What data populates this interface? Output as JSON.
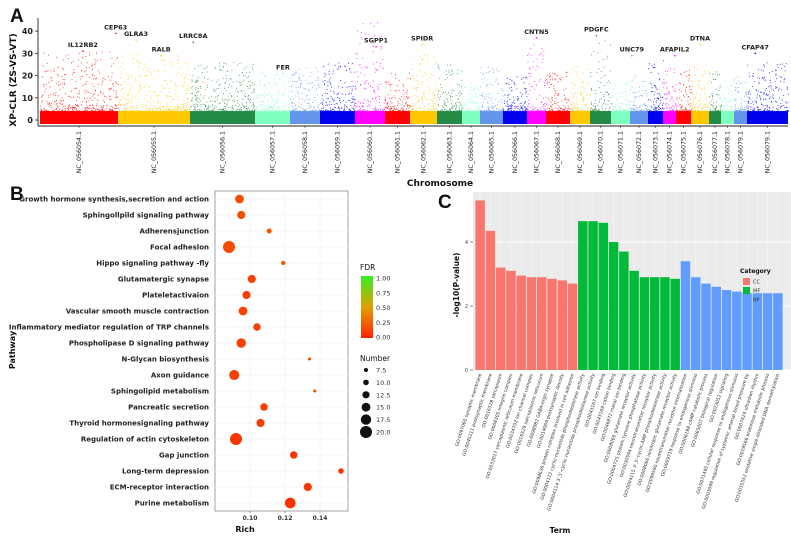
{
  "chart_data": [
    {
      "panel": "A",
      "type": "scatter",
      "subtype": "manhattan",
      "title": "",
      "xlabel": "Chromosome",
      "ylabel": "XP-CLR (ZS-VS-VT)",
      "ylim": [
        0,
        45
      ],
      "yticks": [
        0,
        10,
        20,
        30,
        40
      ],
      "grid": false,
      "chromosomes": [
        {
          "name": "NC_056054.1",
          "color": "#ff0000",
          "max": 31,
          "span": 78
        },
        {
          "name": "NC_056055.1",
          "color": "#ffc800",
          "max": 30,
          "span": 72
        },
        {
          "name": "NC_056056.1",
          "color": "#238b45",
          "max": 26,
          "span": 65
        },
        {
          "name": "NC_056057.1",
          "color": "#7fffbf",
          "max": 22,
          "span": 35
        },
        {
          "name": "NC_056058.1",
          "color": "#6495ed",
          "max": 24,
          "span": 30
        },
        {
          "name": "NC_056059.1",
          "color": "#0000ee",
          "max": 26,
          "span": 35
        },
        {
          "name": "NC_056060.1",
          "color": "#ff00ff",
          "max": 44,
          "span": 30
        },
        {
          "name": "NC_056061.1",
          "color": "#ff0000",
          "max": 22,
          "span": 25
        },
        {
          "name": "NC_056062.1",
          "color": "#ffc800",
          "max": 34,
          "span": 27
        },
        {
          "name": "NC_056063.1",
          "color": "#238b45",
          "max": 25,
          "span": 25
        },
        {
          "name": "NC_056064.1",
          "color": "#7fffbf",
          "max": 18,
          "span": 18
        },
        {
          "name": "NC_056065.1",
          "color": "#6495ed",
          "max": 24,
          "span": 23
        },
        {
          "name": "NC_056066.1",
          "color": "#0000ee",
          "max": 20,
          "span": 24
        },
        {
          "name": "NC_056067.1",
          "color": "#ff00ff",
          "max": 35,
          "span": 19
        },
        {
          "name": "NC_056068.1",
          "color": "#ff0000",
          "max": 22,
          "span": 24
        },
        {
          "name": "NC_056069.1",
          "color": "#ffc800",
          "max": 25,
          "span": 20
        },
        {
          "name": "NC_056070.1",
          "color": "#238b45",
          "max": 37,
          "span": 21
        },
        {
          "name": "NC_056071.1",
          "color": "#7fffbf",
          "max": 18,
          "span": 19
        },
        {
          "name": "NC_056072.1",
          "color": "#6495ed",
          "max": 20,
          "span": 18
        },
        {
          "name": "NC_056073.1",
          "color": "#0000ee",
          "max": 28,
          "span": 15
        },
        {
          "name": "NC_056074.1",
          "color": "#ff00ff",
          "max": 24,
          "span": 13
        },
        {
          "name": "NC_056075.1",
          "color": "#ff0000",
          "max": 23,
          "span": 15
        },
        {
          "name": "NC_056076.1",
          "color": "#ffc800",
          "max": 24,
          "span": 18
        },
        {
          "name": "NC_056077.1",
          "color": "#238b45",
          "max": 22,
          "span": 12
        },
        {
          "name": "NC_056078.1",
          "color": "#7fffbf",
          "max": 18,
          "span": 13
        },
        {
          "name": "NC_056079.1",
          "color": "#6495ed",
          "max": 20,
          "span": 13
        },
        {
          "name": "NC_056079.1",
          "color": "#0000ee",
          "max": 26,
          "span": 41
        }
      ],
      "annotations": [
        {
          "label": "IL12RB2",
          "chrom_index": 0,
          "pos": 0.55,
          "y": 31
        },
        {
          "label": "CEP63",
          "chrom_index": 0,
          "pos": 0.97,
          "y": 39
        },
        {
          "label": "GLRA3",
          "chrom_index": 1,
          "pos": 0.25,
          "y": 36
        },
        {
          "label": "RALB",
          "chrom_index": 1,
          "pos": 0.6,
          "y": 29
        },
        {
          "label": "LRRC8A",
          "chrom_index": 2,
          "pos": 0.05,
          "y": 35
        },
        {
          "label": "FER",
          "chrom_index": 3,
          "pos": 0.8,
          "y": 21
        },
        {
          "label": "SGPP1",
          "chrom_index": 6,
          "pos": 0.7,
          "y": 33
        },
        {
          "label": "SPIDR",
          "chrom_index": 8,
          "pos": 0.45,
          "y": 34
        },
        {
          "label": "CNTN5",
          "chrom_index": 13,
          "pos": 0.5,
          "y": 37
        },
        {
          "label": "PDGFC",
          "chrom_index": 16,
          "pos": 0.3,
          "y": 38
        },
        {
          "label": "UNC79",
          "chrom_index": 18,
          "pos": 0.1,
          "y": 29
        },
        {
          "label": "AFAPIL2",
          "chrom_index": 20,
          "pos": 0.9,
          "y": 29
        },
        {
          "label": "DTNA",
          "chrom_index": 22,
          "pos": 0.5,
          "y": 34
        },
        {
          "label": "CFAP47",
          "chrom_index": 26,
          "pos": 0.2,
          "y": 30
        }
      ]
    },
    {
      "panel": "B",
      "type": "scatter",
      "subtype": "bubble",
      "title": "",
      "xlabel": "Rich",
      "ylabel": "Pathway",
      "xlim": [
        0.085,
        0.155
      ],
      "xticks": [
        0.1,
        0.12,
        0.14
      ],
      "xtick_labels": [
        "0.10",
        "0.12",
        "0.14"
      ],
      "grid": true,
      "color_legend": {
        "title": "FDR",
        "ticks": [
          "1.00",
          "0.75",
          "0.50",
          "0.25",
          "0.00"
        ],
        "low_color": "#ff2200",
        "mid_color": "#e8a000",
        "high_color": "#33ee22"
      },
      "size_legend": {
        "title": "Number",
        "values": [
          "7.5",
          "10.0",
          "12.5",
          "15.0",
          "17.5",
          "20.0"
        ]
      },
      "points": [
        {
          "pathway": "Growth hormone synthesis,secretion and action",
          "rich": 0.094,
          "number": 15,
          "fdr": 0.18
        },
        {
          "pathway": "Sphingollpild signaling pathway",
          "rich": 0.095,
          "number": 14,
          "fdr": 0.18
        },
        {
          "pathway": "Adherensjunction",
          "rich": 0.111,
          "number": 9,
          "fdr": 0.2
        },
        {
          "pathway": "Focal adheslon",
          "rich": 0.088,
          "number": 20,
          "fdr": 0.16
        },
        {
          "pathway": "Hippo signaling pathway -fly",
          "rich": 0.119,
          "number": 8,
          "fdr": 0.2
        },
        {
          "pathway": "Glutamatergic synapse",
          "rich": 0.101,
          "number": 14,
          "fdr": 0.12
        },
        {
          "pathway": "Plateletactivaion",
          "rich": 0.098,
          "number": 14,
          "fdr": 0.12
        },
        {
          "pathway": "Vascular smooth muscle contraction",
          "rich": 0.096,
          "number": 15,
          "fdr": 0.12
        },
        {
          "pathway": "Inflammatory mediator regulation of TRP channels",
          "rich": 0.104,
          "number": 13,
          "fdr": 0.12
        },
        {
          "pathway": "Phospholipase D signaling pathway",
          "rich": 0.095,
          "number": 16,
          "fdr": 0.12
        },
        {
          "pathway": "N-Glycan biosynthesis",
          "rich": 0.134,
          "number": 6,
          "fdr": 0.12
        },
        {
          "pathway": "Axon guidance",
          "rich": 0.091,
          "number": 17,
          "fdr": 0.12
        },
        {
          "pathway": "Sphingolipid metabolism",
          "rich": 0.137,
          "number": 6,
          "fdr": 0.12
        },
        {
          "pathway": "Pancreatic secretion",
          "rich": 0.108,
          "number": 13,
          "fdr": 0.1
        },
        {
          "pathway": "Thyroid hormonesignaling pathway",
          "rich": 0.106,
          "number": 14,
          "fdr": 0.1
        },
        {
          "pathway": "Regulation of actin cytoskeleton",
          "rich": 0.092,
          "number": 20,
          "fdr": 0.08
        },
        {
          "pathway": "Gap junction",
          "rich": 0.125,
          "number": 13,
          "fdr": 0.08
        },
        {
          "pathway": "Long-term depression",
          "rich": 0.152,
          "number": 10,
          "fdr": 0.08
        },
        {
          "pathway": "ECM-receptor interaction",
          "rich": 0.133,
          "number": 14,
          "fdr": 0.08
        },
        {
          "pathway": "Purine metabolism",
          "rich": 0.123,
          "number": 18,
          "fdr": 0.06
        }
      ]
    },
    {
      "panel": "C",
      "type": "bar",
      "title": "",
      "xlabel": "Term",
      "ylabel": "-log10(P-value)",
      "ylim": [
        0,
        5.6
      ],
      "yticks": [
        0,
        2,
        4
      ],
      "grid": true,
      "legend": {
        "title": "Category",
        "placement": "right",
        "entries": [
          {
            "name": "CC",
            "color": "#f8766d"
          },
          {
            "name": "MF",
            "color": "#00ba38"
          },
          {
            "name": "BP",
            "color": "#619cff"
          }
        ]
      },
      "bars": [
        {
          "term": "GO:0097060 synaptic membrane",
          "category": "CC",
          "value": 5.3
        },
        {
          "term": "GO:0045211 postsynaptic membrane",
          "category": "CC",
          "value": 4.35
        },
        {
          "term": "GO:0016528 sarcoplasm",
          "category": "CC",
          "value": 3.2
        },
        {
          "term": "GO:0008305 integrin complex",
          "category": "CC",
          "value": 3.1
        },
        {
          "term": "GO:0033017 sarcoplasmic reticulum membrane",
          "category": "CC",
          "value": 2.95
        },
        {
          "term": "GO:0034702 ion channel complex",
          "category": "CC",
          "value": 2.9
        },
        {
          "term": "GO:0016529 sarcoplasmic reticulum",
          "category": "CC",
          "value": 2.9
        },
        {
          "term": "GO:0098982 GABA-ergic synapse",
          "category": "CC",
          "value": 2.85
        },
        {
          "term": "GO:0014069 postsynaptic density",
          "category": "CC",
          "value": 2.8
        },
        {
          "term": "GO:0098636 protein complex involved in cell adhesion",
          "category": "CC",
          "value": 2.7
        },
        {
          "term": "GO:0004112 cyclic-nucleotide phosphodiesterase activity",
          "category": "MF",
          "value": 4.65
        },
        {
          "term": "GO:0004114 3',5'-cyclic-nucleotide phosphodiesterase activity",
          "category": "MF",
          "value": 4.65
        },
        {
          "term": "GO:0043167 ion binding",
          "category": "MF",
          "value": 4.6
        },
        {
          "term": "GO:0043169 cation binding",
          "category": "MF",
          "value": 4.0
        },
        {
          "term": "GO:0046872 metal ion binding",
          "category": "MF",
          "value": 3.7
        },
        {
          "term": "GO:0008066 glutamate receptor activity",
          "category": "MF",
          "value": 3.1
        },
        {
          "term": "GO:0004725 protein tyrosine phosphatase activity",
          "category": "MF",
          "value": 2.9
        },
        {
          "term": "GO:0030594 neurotransmitter receptor activity",
          "category": "MF",
          "value": 2.9
        },
        {
          "term": "GO:0004115 3',5'-cyclic-AMP phosphodiesterase activity",
          "category": "MF",
          "value": 2.9
        },
        {
          "term": "GO:0008066 ionotropic glutamate receptor activity",
          "category": "MF",
          "value": 2.85
        },
        {
          "term": "GO:0099590 neurotransmitter receptor internalization",
          "category": "BP",
          "value": 3.4
        },
        {
          "term": "GO:0009719 response to endogenous stimulus",
          "category": "BP",
          "value": 2.9
        },
        {
          "term": "GO:0006198 cAMP catabolic process",
          "category": "BP",
          "value": 2.7
        },
        {
          "term": "GO:0065007 biological regulation",
          "category": "BP",
          "value": 2.6
        },
        {
          "term": "GO:0023052 signaling",
          "category": "BP",
          "value": 2.5
        },
        {
          "term": "GO:0071495 cellular response to endogenous stimulus",
          "category": "BP",
          "value": 2.45
        },
        {
          "term": "GO:0003099 regulation of systemic arterial blood pressure by",
          "category": "BP",
          "value": 2.4
        },
        {
          "term": "GO:0007624 ultradian rhythm",
          "category": "BP",
          "value": 2.4
        },
        {
          "term": "GO:0019566 arabinose metabolic process",
          "category": "BP",
          "value": 2.4
        },
        {
          "term": "GO:0035552 oxidative single-stranded DNA demethylation",
          "category": "BP",
          "value": 2.4
        }
      ]
    }
  ],
  "panels": {
    "A": {
      "letter": "A"
    },
    "B": {
      "letter": "B"
    },
    "C": {
      "letter": "C"
    }
  }
}
